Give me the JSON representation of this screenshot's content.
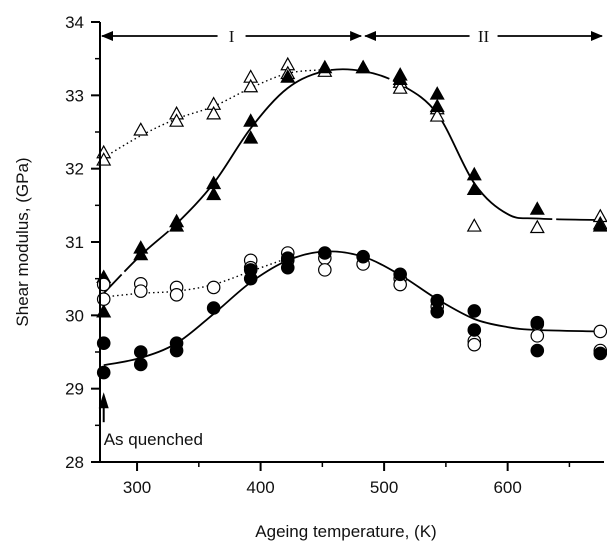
{
  "chart_data": {
    "type": "scatter",
    "xlabel": "Ageing temperature, (K)",
    "ylabel": "Shear modulus, (GPa)",
    "xlim": [
      270,
      678
    ],
    "ylim": [
      28,
      34
    ],
    "xticks": [
      300,
      400,
      500,
      600
    ],
    "xtick_labels": [
      "300",
      "400",
      "500",
      "600"
    ],
    "yticks": [
      28,
      29,
      30,
      31,
      32,
      33,
      34
    ],
    "ytick_labels": [
      "28",
      "29",
      "30",
      "31",
      "32",
      "33",
      "34"
    ],
    "grid": false,
    "legend": "none",
    "regions": [
      {
        "label": "I",
        "from": 270,
        "to": 483
      },
      {
        "label": "II",
        "from": 483,
        "to": 678
      }
    ],
    "annotations": [
      {
        "text": "As quenched",
        "x": 273,
        "y": 28.87
      }
    ],
    "series": [
      {
        "marker": "triangle-open",
        "curve": "dotted",
        "points": [
          [
            273,
            32.22
          ],
          [
            273,
            32.12
          ],
          [
            303,
            32.53
          ],
          [
            332,
            32.75
          ],
          [
            332,
            32.65
          ],
          [
            362,
            32.88
          ],
          [
            362,
            32.75
          ],
          [
            392,
            33.25
          ],
          [
            392,
            33.12
          ],
          [
            422,
            33.42
          ],
          [
            422,
            33.3
          ],
          [
            452,
            33.33
          ],
          [
            483,
            33.38
          ],
          [
            513,
            33.18
          ],
          [
            513,
            33.1
          ],
          [
            543,
            32.82
          ],
          [
            543,
            32.72
          ],
          [
            573,
            31.22
          ],
          [
            624,
            31.2
          ],
          [
            675,
            31.35
          ],
          [
            675,
            31.25
          ]
        ],
        "curve_points": [
          [
            273,
            32.15
          ],
          [
            303,
            32.45
          ],
          [
            332,
            32.68
          ],
          [
            362,
            32.85
          ],
          [
            392,
            33.1
          ],
          [
            422,
            33.3
          ],
          [
            452,
            33.35
          ]
        ]
      },
      {
        "marker": "triangle-filled",
        "curve": "solid",
        "points": [
          [
            273,
            30.52
          ],
          [
            273,
            30.05
          ],
          [
            303,
            30.92
          ],
          [
            303,
            30.83
          ],
          [
            332,
            31.28
          ],
          [
            332,
            31.22
          ],
          [
            362,
            31.8
          ],
          [
            362,
            31.65
          ],
          [
            392,
            32.65
          ],
          [
            392,
            32.42
          ],
          [
            422,
            33.25
          ],
          [
            452,
            33.38
          ],
          [
            483,
            33.38
          ],
          [
            513,
            33.28
          ],
          [
            513,
            33.22
          ],
          [
            543,
            33.02
          ],
          [
            543,
            32.85
          ],
          [
            573,
            31.92
          ],
          [
            573,
            31.72
          ],
          [
            624,
            31.45
          ],
          [
            675,
            31.22
          ]
        ],
        "curve_points": [
          [
            273,
            30.3
          ],
          [
            303,
            30.82
          ],
          [
            332,
            31.25
          ],
          [
            362,
            31.8
          ],
          [
            392,
            32.55
          ],
          [
            422,
            33.1
          ],
          [
            452,
            33.33
          ],
          [
            483,
            33.33
          ],
          [
            513,
            33.15
          ],
          [
            543,
            32.75
          ],
          [
            573,
            31.8
          ],
          [
            600,
            31.38
          ],
          [
            624,
            31.32
          ],
          [
            675,
            31.3
          ]
        ]
      },
      {
        "marker": "circle-open",
        "curve": "dotted",
        "points": [
          [
            273,
            30.42
          ],
          [
            273,
            30.22
          ],
          [
            303,
            30.43
          ],
          [
            303,
            30.33
          ],
          [
            332,
            30.38
          ],
          [
            332,
            30.28
          ],
          [
            362,
            30.38
          ],
          [
            392,
            30.75
          ],
          [
            392,
            30.65
          ],
          [
            422,
            30.85
          ],
          [
            422,
            30.75
          ],
          [
            452,
            30.78
          ],
          [
            452,
            30.62
          ],
          [
            483,
            30.7
          ],
          [
            513,
            30.5
          ],
          [
            513,
            30.42
          ],
          [
            543,
            30.12
          ],
          [
            573,
            29.65
          ],
          [
            573,
            29.6
          ],
          [
            624,
            29.88
          ],
          [
            624,
            29.72
          ],
          [
            675,
            29.78
          ],
          [
            675,
            29.52
          ]
        ],
        "curve_points": [
          [
            273,
            30.25
          ],
          [
            303,
            30.3
          ],
          [
            332,
            30.33
          ],
          [
            362,
            30.42
          ],
          [
            392,
            30.6
          ],
          [
            422,
            30.78
          ]
        ]
      },
      {
        "marker": "circle-filled",
        "curve": "solid",
        "points": [
          [
            273,
            29.62
          ],
          [
            273,
            29.22
          ],
          [
            303,
            29.5
          ],
          [
            303,
            29.33
          ],
          [
            332,
            29.62
          ],
          [
            332,
            29.52
          ],
          [
            362,
            30.1
          ],
          [
            392,
            30.62
          ],
          [
            392,
            30.5
          ],
          [
            422,
            30.78
          ],
          [
            422,
            30.65
          ],
          [
            452,
            30.85
          ],
          [
            483,
            30.8
          ],
          [
            513,
            30.56
          ],
          [
            543,
            30.2
          ],
          [
            543,
            30.05
          ],
          [
            573,
            30.06
          ],
          [
            573,
            29.8
          ],
          [
            624,
            29.9
          ],
          [
            624,
            29.52
          ],
          [
            675,
            29.48
          ]
        ],
        "curve_points": [
          [
            273,
            29.32
          ],
          [
            303,
            29.42
          ],
          [
            332,
            29.62
          ],
          [
            362,
            30.02
          ],
          [
            392,
            30.45
          ],
          [
            422,
            30.75
          ],
          [
            452,
            30.87
          ],
          [
            483,
            30.8
          ],
          [
            513,
            30.55
          ],
          [
            543,
            30.22
          ],
          [
            573,
            29.95
          ],
          [
            600,
            29.84
          ],
          [
            624,
            29.8
          ],
          [
            675,
            29.78
          ]
        ]
      }
    ]
  }
}
